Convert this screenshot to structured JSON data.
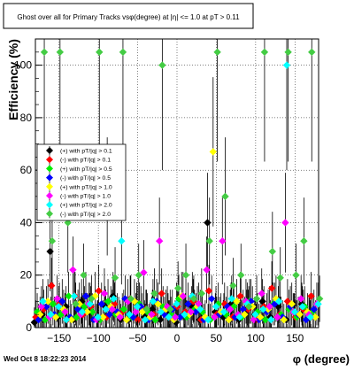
{
  "chart_data": {
    "type": "scatter",
    "title": "Ghost over all for Primary Tracks vsφ(degree) at |η| <= 1.0 at pT > 0.11",
    "xlabel": "φ (degree)",
    "ylabel": "Efficiency (%)",
    "xlim": [
      -180,
      180
    ],
    "ylim": [
      0,
      110
    ],
    "x_ticks": [
      -150,
      -100,
      -50,
      0,
      50,
      100,
      150
    ],
    "x_tick_labels": [
      "−150",
      "−100",
      "−50",
      "0",
      "50",
      "100",
      "150"
    ],
    "y_ticks": [
      0,
      20,
      40,
      60,
      80,
      100
    ],
    "y_tick_labels": [
      "0",
      "20",
      "40",
      "60",
      "80",
      "100"
    ],
    "grid": true,
    "legend_position": "center-left",
    "series": [
      {
        "name": "(+) with pT/|q| > 0.1",
        "color": "#000000",
        "x": [
          -175,
          -165,
          -155,
          -145,
          -135,
          -125,
          -115,
          -105,
          -95,
          -85,
          -75,
          -65,
          -55,
          -45,
          -35,
          -25,
          -15,
          -5,
          5,
          15,
          25,
          35,
          45,
          55,
          65,
          75,
          85,
          95,
          105,
          115,
          125,
          135,
          145,
          155,
          165,
          175
        ],
        "y": [
          2,
          5,
          29,
          4,
          8,
          3,
          10,
          6,
          4,
          8,
          12,
          3,
          5,
          9,
          4,
          7,
          3,
          6,
          2,
          5,
          8,
          3,
          40,
          6,
          4,
          9,
          3,
          7,
          5,
          10,
          4,
          8,
          3,
          6,
          9,
          5
        ]
      },
      {
        "name": "(-) with pT/|q| > 0.1",
        "color": "#ff0000",
        "x": [
          -175,
          -165,
          -155,
          -145,
          -135,
          -125,
          -115,
          -105,
          -95,
          -85,
          -75,
          -65,
          -55,
          -45,
          -35,
          -25,
          -15,
          -5,
          5,
          15,
          25,
          35,
          45,
          55,
          65,
          75,
          85,
          95,
          105,
          115,
          125,
          135,
          145,
          155,
          165,
          175
        ],
        "y": [
          4,
          7,
          16,
          9,
          3,
          12,
          5,
          8,
          14,
          4,
          9,
          6,
          11,
          3,
          7,
          5,
          13,
          4,
          8,
          6,
          10,
          3,
          14,
          5,
          9,
          4,
          12,
          7,
          3,
          8,
          15,
          5,
          10,
          4,
          7,
          12
        ]
      },
      {
        "name": "(+) with pT/|q| > 0.5",
        "color": "#00ee00",
        "x": [
          -175,
          -165,
          -155,
          -145,
          -135,
          -125,
          -115,
          -105,
          -95,
          -85,
          -75,
          -65,
          -55,
          -45,
          -35,
          -25,
          -15,
          -5,
          5,
          15,
          25,
          35,
          45,
          55,
          65,
          75,
          85,
          95,
          105,
          115,
          125,
          135,
          145,
          155,
          165,
          175
        ],
        "y": [
          6,
          3,
          9,
          5,
          12,
          4,
          8,
          6,
          3,
          10,
          5,
          7,
          4,
          9,
          6,
          3,
          8,
          5,
          11,
          4,
          7,
          6,
          3,
          9,
          5,
          8,
          4,
          10,
          6,
          3,
          9,
          5,
          7,
          4,
          8,
          6
        ]
      },
      {
        "name": "(-) with pT/|q| > 0.5",
        "color": "#0000ff",
        "x": [
          -175,
          -165,
          -155,
          -145,
          -135,
          -125,
          -115,
          -105,
          -95,
          -85,
          -75,
          -65,
          -55,
          -45,
          -35,
          -25,
          -15,
          -5,
          5,
          15,
          25,
          35,
          45,
          55,
          65,
          75,
          85,
          95,
          105,
          115,
          125,
          135,
          145,
          155,
          165,
          175
        ],
        "y": [
          3,
          8,
          5,
          10,
          4,
          7,
          12,
          3,
          9,
          5,
          6,
          11,
          4,
          8,
          3,
          10,
          5,
          7,
          4,
          9,
          6,
          3,
          11,
          5,
          8,
          4,
          7,
          10,
          3,
          6,
          9,
          4,
          8,
          5,
          3,
          7
        ]
      },
      {
        "name": "(+) with pT/|q| > 1.0",
        "color": "#ffff00",
        "x": [
          -175,
          -165,
          -155,
          -145,
          -135,
          -125,
          -115,
          -105,
          -95,
          -85,
          -75,
          -65,
          -55,
          -45,
          -35,
          -25,
          -15,
          -5,
          5,
          15,
          25,
          35,
          45,
          55,
          65,
          75,
          85,
          95,
          105,
          115,
          125,
          135,
          145,
          155,
          165,
          175
        ],
        "y": [
          5,
          10,
          4,
          7,
          3,
          9,
          6,
          12,
          4,
          8,
          5,
          3,
          10,
          6,
          4,
          9,
          7,
          3,
          12,
          5,
          8,
          4,
          67,
          6,
          3,
          10,
          5,
          8,
          4,
          7,
          11,
          3,
          9,
          5,
          6,
          4
        ]
      },
      {
        "name": "(-) with pT/|q| > 1.0",
        "color": "#ff00ff",
        "x": [
          -175,
          -165,
          -155,
          -145,
          -135,
          -125,
          -115,
          -105,
          -95,
          -85,
          -75,
          -65,
          -55,
          -45,
          -35,
          -25,
          -15,
          -5,
          5,
          15,
          25,
          35,
          45,
          55,
          65,
          75,
          85,
          95,
          105,
          115,
          125,
          135,
          145,
          155,
          165,
          175
        ],
        "y": [
          8,
          4,
          11,
          6,
          22,
          5,
          9,
          3,
          13,
          7,
          4,
          10,
          6,
          21,
          5,
          33,
          8,
          4,
          12,
          6,
          9,
          22,
          4,
          33,
          7,
          5,
          10,
          3,
          13,
          8,
          4,
          40,
          6,
          11,
          5,
          9
        ]
      },
      {
        "name": "(+) with pT/|q| > 2.0",
        "color": "#00ffff",
        "x": [
          -175,
          -165,
          -155,
          -145,
          -135,
          -125,
          -115,
          -105,
          -95,
          -85,
          -75,
          -65,
          -55,
          -45,
          -35,
          -25,
          -15,
          -5,
          5,
          15,
          25,
          35,
          45,
          55,
          65,
          75,
          85,
          95,
          105,
          115,
          125,
          135,
          145,
          155,
          165,
          175
        ],
        "y": [
          10,
          5,
          8,
          3,
          12,
          6,
          9,
          4,
          7,
          11,
          33,
          5,
          8,
          3,
          10,
          6,
          4,
          9,
          5,
          12,
          7,
          3,
          8,
          6,
          11,
          4,
          9,
          5,
          7,
          3,
          10,
          100,
          6,
          8,
          4,
          9
        ]
      },
      {
        "name": "(-) with pT/|q| > 2.0",
        "color": "#44cc44",
        "x": [
          -175,
          -165,
          -155,
          -145,
          -135,
          -125,
          -115,
          -105,
          -95,
          -85,
          -75,
          -65,
          -55,
          -45,
          -35,
          -25,
          -15,
          -5,
          5,
          15,
          25,
          35,
          45,
          55,
          65,
          75,
          85,
          95,
          105,
          115,
          125,
          135,
          145,
          155,
          165,
          175
        ],
        "y": [
          105,
          33,
          105,
          40,
          9,
          20,
          11,
          105,
          50,
          19,
          105,
          11,
          20,
          7,
          13,
          100,
          7,
          15,
          20,
          11,
          13,
          33,
          105,
          50,
          16,
          20,
          8,
          11,
          105,
          29,
          19,
          105,
          20,
          33,
          105,
          11
        ]
      }
    ]
  },
  "footer": {
    "timestamp": "Wed Oct  8 18:22:23 2014"
  }
}
